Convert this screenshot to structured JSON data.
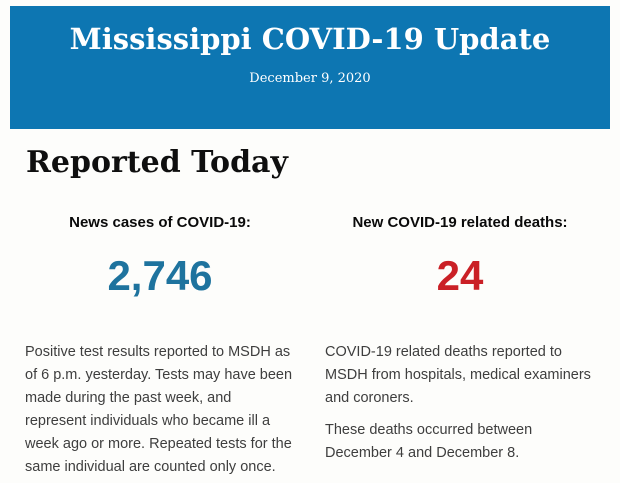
{
  "header": {
    "title": "Mississippi COVID-19 Update",
    "date": "December 9, 2020",
    "background_color": "#0d76b2",
    "text_color": "#ffffff"
  },
  "section": {
    "heading": "Reported Today"
  },
  "stats": {
    "cases": {
      "label": "News cases of COVID-19:",
      "value": "2,746",
      "value_color": "#1e739e",
      "description": "Positive test results reported to MSDH as\nof 6 p.m. yesterday. Tests may have been\nmade during the past week, and\nrepresent individuals who became ill a\nweek ago or more. Repeated tests for the\nsame individual are counted only once."
    },
    "deaths": {
      "label": "New COVID-19 related deaths:",
      "value": "24",
      "value_color": "#ca2026",
      "descriptions": [
        "COVID-19 related deaths reported to\nMSDH from hospitals, medical examiners\nand coroners.",
        "These deaths occurred between\nDecember 4 and December 8."
      ]
    }
  }
}
